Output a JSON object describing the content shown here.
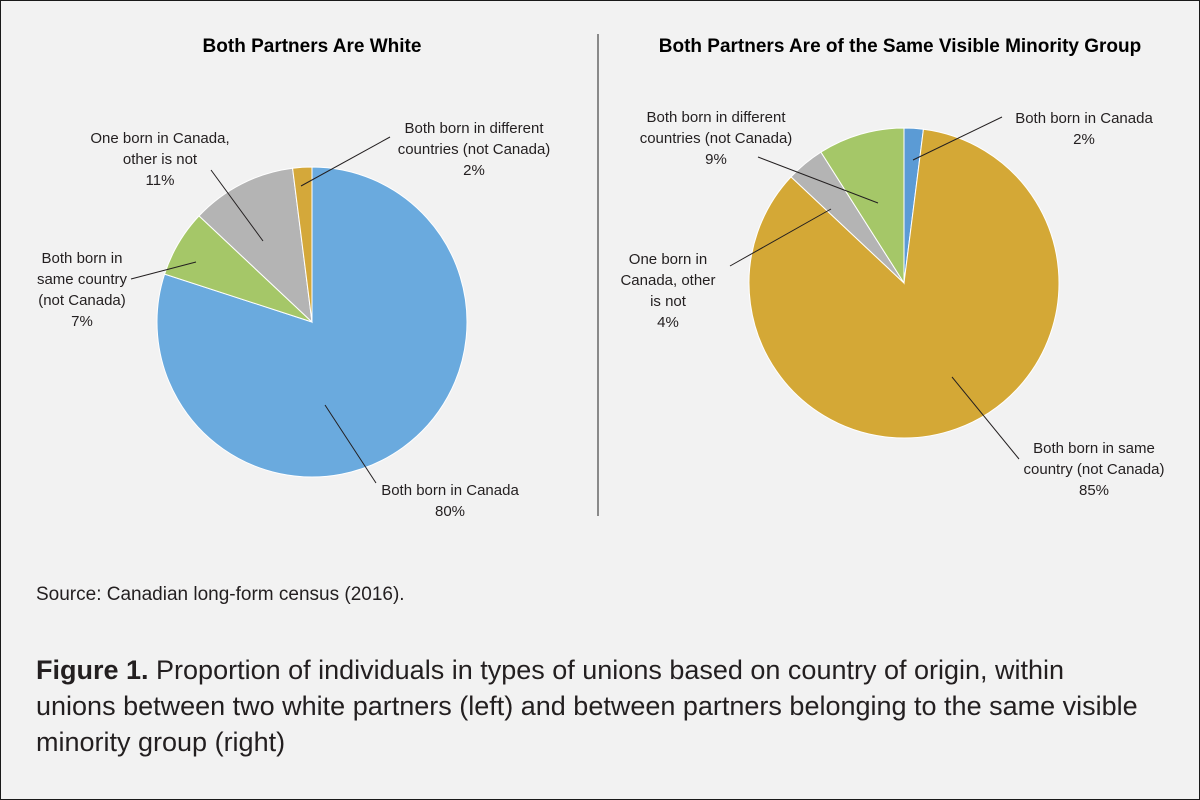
{
  "chart_data": [
    {
      "type": "pie",
      "title": "Both Partners Are White",
      "slices": [
        {
          "label": [
            "Both born in Canada"
          ],
          "pct": "80%",
          "value": 80,
          "color": "#6aaade"
        },
        {
          "label": [
            "Both born in",
            "same country",
            "(not Canada)"
          ],
          "pct": "7%",
          "value": 7,
          "color": "#a5c768"
        },
        {
          "label": [
            "One born in Canada,",
            "other is not"
          ],
          "pct": "11%",
          "value": 11,
          "color": "#b4b4b4"
        },
        {
          "label": [
            "Both born in different",
            "countries (not Canada)"
          ],
          "pct": "2%",
          "value": 2,
          "color": "#d4a83a"
        }
      ]
    },
    {
      "type": "pie",
      "title": "Both Partners Are of the Same Visible Minority Group",
      "slices": [
        {
          "label": [
            "Both born in Canada"
          ],
          "pct": "2%",
          "value": 2,
          "color": "#5b9bd5"
        },
        {
          "label": [
            "Both born in same",
            "country (not Canada)"
          ],
          "pct": "85%",
          "value": 85,
          "color": "#d4a836"
        },
        {
          "label": [
            "One born in",
            "Canada, other",
            "is not"
          ],
          "pct": "4%",
          "value": 4,
          "color": "#b4b4b4"
        },
        {
          "label": [
            "Both born in different",
            "countries (not Canada)"
          ],
          "pct": "9%",
          "value": 9,
          "color": "#a5c768"
        }
      ]
    }
  ],
  "source": "Source: Canadian long-form census (2016).",
  "caption": {
    "lead": "Figure 1.",
    "text": " Proportion of individuals in types of unions based on country of origin, within unions between two white partners (left) and between partners belonging to the same visible minority group (right)"
  }
}
